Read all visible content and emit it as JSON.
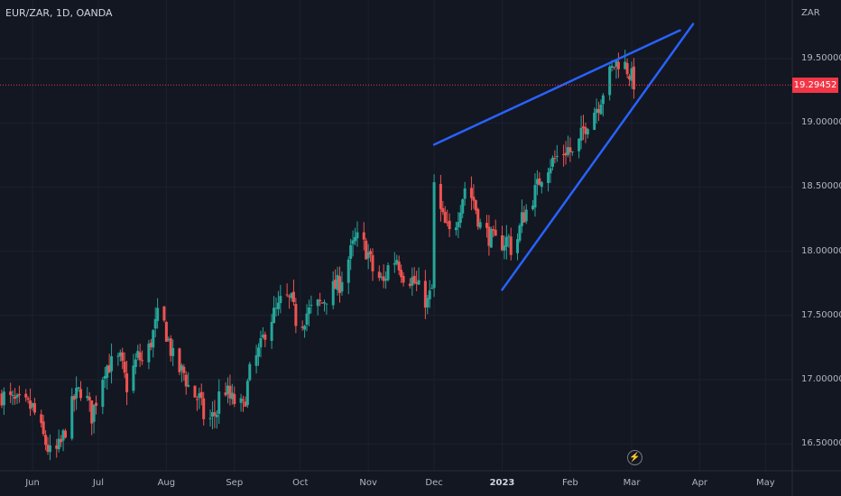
{
  "header": {
    "symbol": "EUR/ZAR, 1D, OANDA",
    "unit": "ZAR"
  },
  "price_tag": "19.29452",
  "icons": {
    "event_marker": "lightning-icon"
  },
  "colors": {
    "background": "#131722",
    "up": "#26a69a",
    "down": "#ef5350",
    "trendline": "#2962ff",
    "price_line": "#f23645"
  },
  "chart_data": {
    "type": "candlestick",
    "title": "EUR/ZAR, 1D, OANDA",
    "y_axis_label": "ZAR",
    "y_ticks": [
      "19.50000",
      "19.00000",
      "18.50000",
      "18.00000",
      "17.50000",
      "17.00000",
      "16.50000"
    ],
    "y_tick_values": [
      19.5,
      19.0,
      18.5,
      18.0,
      17.5,
      17.0,
      16.5
    ],
    "ylim": [
      16.3,
      19.8
    ],
    "x_ticks": [
      {
        "label": "Jun",
        "date": "2022-06-01"
      },
      {
        "label": "Jul",
        "date": "2022-07-01"
      },
      {
        "label": "Aug",
        "date": "2022-08-01"
      },
      {
        "label": "Sep",
        "date": "2022-09-01"
      },
      {
        "label": "Oct",
        "date": "2022-10-01"
      },
      {
        "label": "Nov",
        "date": "2022-11-01"
      },
      {
        "label": "Dec",
        "date": "2022-12-01"
      },
      {
        "label": "2023",
        "date": "2023-01-01",
        "bold": true
      },
      {
        "label": "Feb",
        "date": "2023-02-01"
      },
      {
        "label": "Mar",
        "date": "2023-03-01"
      },
      {
        "label": "Apr",
        "date": "2023-04-01"
      },
      {
        "label": "May",
        "date": "2023-05-01"
      }
    ],
    "last_price": 19.29452,
    "price_path": [
      [
        "2022-05-18",
        16.88
      ],
      [
        "2022-05-24",
        16.82
      ],
      [
        "2022-06-01",
        16.78
      ],
      [
        "2022-06-06",
        16.55
      ],
      [
        "2022-06-10",
        16.38
      ],
      [
        "2022-06-14",
        16.5
      ],
      [
        "2022-06-20",
        16.85
      ],
      [
        "2022-06-24",
        16.95
      ],
      [
        "2022-06-28",
        16.72
      ],
      [
        "2022-07-04",
        17.1
      ],
      [
        "2022-07-11",
        17.15
      ],
      [
        "2022-07-14",
        16.95
      ],
      [
        "2022-07-19",
        17.18
      ],
      [
        "2022-07-22",
        17.12
      ],
      [
        "2022-07-27",
        17.42
      ],
      [
        "2022-07-29",
        17.55
      ],
      [
        "2022-08-02",
        17.3
      ],
      [
        "2022-08-05",
        17.1
      ],
      [
        "2022-08-09",
        17.05
      ],
      [
        "2022-08-12",
        16.9
      ],
      [
        "2022-08-16",
        16.85
      ],
      [
        "2022-08-19",
        16.65
      ],
      [
        "2022-08-24",
        16.75
      ],
      [
        "2022-08-26",
        17.0
      ],
      [
        "2022-08-30",
        16.85
      ],
      [
        "2022-09-05",
        16.78
      ],
      [
        "2022-09-08",
        17.05
      ],
      [
        "2022-09-13",
        17.25
      ],
      [
        "2022-09-16",
        17.45
      ],
      [
        "2022-09-21",
        17.55
      ],
      [
        "2022-09-23",
        17.65
      ],
      [
        "2022-09-27",
        17.6
      ],
      [
        "2022-09-30",
        17.4
      ],
      [
        "2022-10-04",
        17.52
      ],
      [
        "2022-10-07",
        17.55
      ],
      [
        "2022-10-11",
        17.6
      ],
      [
        "2022-10-14",
        17.68
      ],
      [
        "2022-10-19",
        17.75
      ],
      [
        "2022-10-21",
        17.85
      ],
      [
        "2022-10-26",
        18.08
      ],
      [
        "2022-10-28",
        18.1
      ],
      [
        "2022-11-01",
        17.98
      ],
      [
        "2022-11-03",
        17.85
      ],
      [
        "2022-11-08",
        17.75
      ],
      [
        "2022-11-10",
        17.88
      ],
      [
        "2022-11-14",
        17.95
      ],
      [
        "2022-11-17",
        17.82
      ],
      [
        "2022-11-21",
        17.78
      ],
      [
        "2022-11-24",
        17.7
      ],
      [
        "2022-11-28",
        17.6
      ],
      [
        "2022-11-30",
        17.7
      ],
      [
        "2022-12-01",
        18.5
      ],
      [
        "2022-12-02",
        18.4
      ],
      [
        "2022-12-06",
        18.2
      ],
      [
        "2022-12-09",
        18.1
      ],
      [
        "2022-12-12",
        18.3
      ],
      [
        "2022-12-15",
        18.5
      ],
      [
        "2022-12-19",
        18.4
      ],
      [
        "2022-12-22",
        18.2
      ],
      [
        "2022-12-27",
        18.1
      ],
      [
        "2022-12-30",
        18.05
      ],
      [
        "2023-01-04",
        18.1
      ],
      [
        "2023-01-06",
        17.95
      ],
      [
        "2023-01-10",
        18.25
      ],
      [
        "2023-01-13",
        18.35
      ],
      [
        "2023-01-17",
        18.5
      ],
      [
        "2023-01-20",
        18.65
      ],
      [
        "2023-01-24",
        18.7
      ],
      [
        "2023-01-27",
        18.75
      ],
      [
        "2023-01-31",
        18.8
      ],
      [
        "2023-02-03",
        18.72
      ],
      [
        "2023-02-07",
        18.95
      ],
      [
        "2023-02-10",
        19.05
      ],
      [
        "2023-02-14",
        19.15
      ],
      [
        "2023-02-17",
        19.3
      ],
      [
        "2023-02-21",
        19.45
      ],
      [
        "2023-02-24",
        19.5
      ],
      [
        "2023-02-27",
        19.42
      ],
      [
        "2023-03-01",
        19.35
      ],
      [
        "2023-03-03",
        19.29
      ]
    ],
    "trendlines": [
      {
        "name": "upper",
        "from": [
          "2022-12-01",
          18.83
        ],
        "to": [
          "2023-03-23",
          19.72
        ]
      },
      {
        "name": "lower",
        "from": [
          "2023-01-01",
          17.7
        ],
        "to": [
          "2023-03-29",
          19.77
        ]
      }
    ]
  }
}
